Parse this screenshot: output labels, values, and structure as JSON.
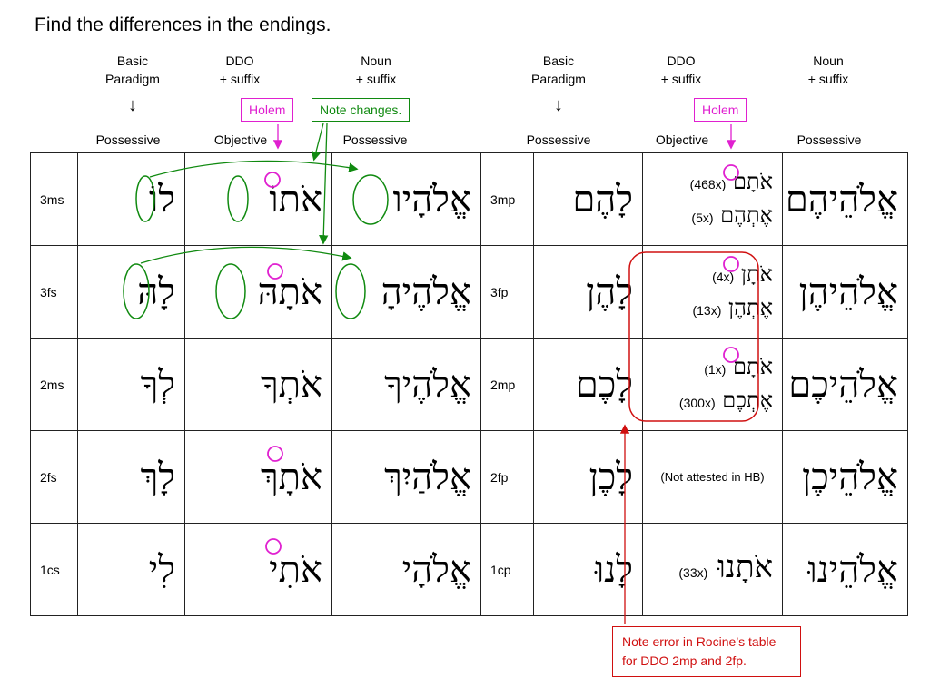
{
  "title": "Find the differences in the endings.",
  "left_headers": {
    "basic": [
      "Basic",
      "Paradigm"
    ],
    "ddo": [
      "DDO",
      "+ suffix"
    ],
    "noun": [
      "Noun",
      "+ suffix"
    ],
    "sub": [
      "Possessive",
      "Objective",
      "Possessive"
    ]
  },
  "right_headers": {
    "basic": [
      "Basic",
      "Paradigm"
    ],
    "ddo": [
      "DDO",
      "+ suffix"
    ],
    "noun": [
      "Noun",
      "+ suffix"
    ],
    "sub": [
      "Possessive",
      "Objective",
      "Possessive"
    ]
  },
  "callouts": {
    "holem_left": "Holem",
    "note_changes": "Note changes.",
    "holem_right": "Holem",
    "error_note": "Note error in Rocine’s table for DDO 2mp and 2fp."
  },
  "colors": {
    "magenta": "#e020d0",
    "green": "#108a10",
    "red": "#d01010"
  },
  "rows_left": [
    {
      "person": "3ms",
      "basic": "לוֹ",
      "ddo": "אֹתוֹ",
      "noun": "אֱלֹהָיו"
    },
    {
      "person": "3fs",
      "basic": "לָהּ",
      "ddo": "אֹתָהּ",
      "noun": "אֱלֹהֶיהָ"
    },
    {
      "person": "2ms",
      "basic": "לְךָ",
      "ddo": "אֹתְךָ",
      "noun": "אֱלֹהֶיךָ"
    },
    {
      "person": "2fs",
      "basic": "לָךְ",
      "ddo": "אֹתָךְ",
      "noun": "אֱלֹהַיִךְ"
    },
    {
      "person": "1cs",
      "basic": "לִי",
      "ddo": "אֹתִי",
      "noun": "אֱלֹהָי"
    }
  ],
  "rows_right": [
    {
      "person": "3mp",
      "basic": "לָהֶם",
      "ddo_a": "אֹתָם",
      "ddo_a_count": "(468x)",
      "ddo_b": "אֶתְהֶם",
      "ddo_b_count": "(5x)",
      "noun": "אֱלֹהֵיהֶם"
    },
    {
      "person": "3fp",
      "basic": "לָהֶן",
      "ddo_a": "אֹתָן",
      "ddo_a_count": "(4x)",
      "ddo_b": "אֶתְהֶן",
      "ddo_b_count": "(13x)",
      "noun": "אֱלֹהֵיהֶן"
    },
    {
      "person": "2mp",
      "basic": "לָכֶם",
      "ddo_a": "אֹתָם",
      "ddo_a_count": "(1x)",
      "ddo_b": "אֶתְכֶם",
      "ddo_b_count": "(300x)",
      "noun": "אֱלֹהֵיכֶם"
    },
    {
      "person": "2fp",
      "basic": "לָכֶן",
      "ddo_note": "(Not attested in HB)",
      "noun": "אֱלֹהֵיכֶן"
    },
    {
      "person": "1cp",
      "basic": "לָנוּ",
      "ddo_a": "אֹתָנוּ",
      "ddo_a_count": "(33x)",
      "noun": "אֱלֹהֵינוּ"
    }
  ]
}
